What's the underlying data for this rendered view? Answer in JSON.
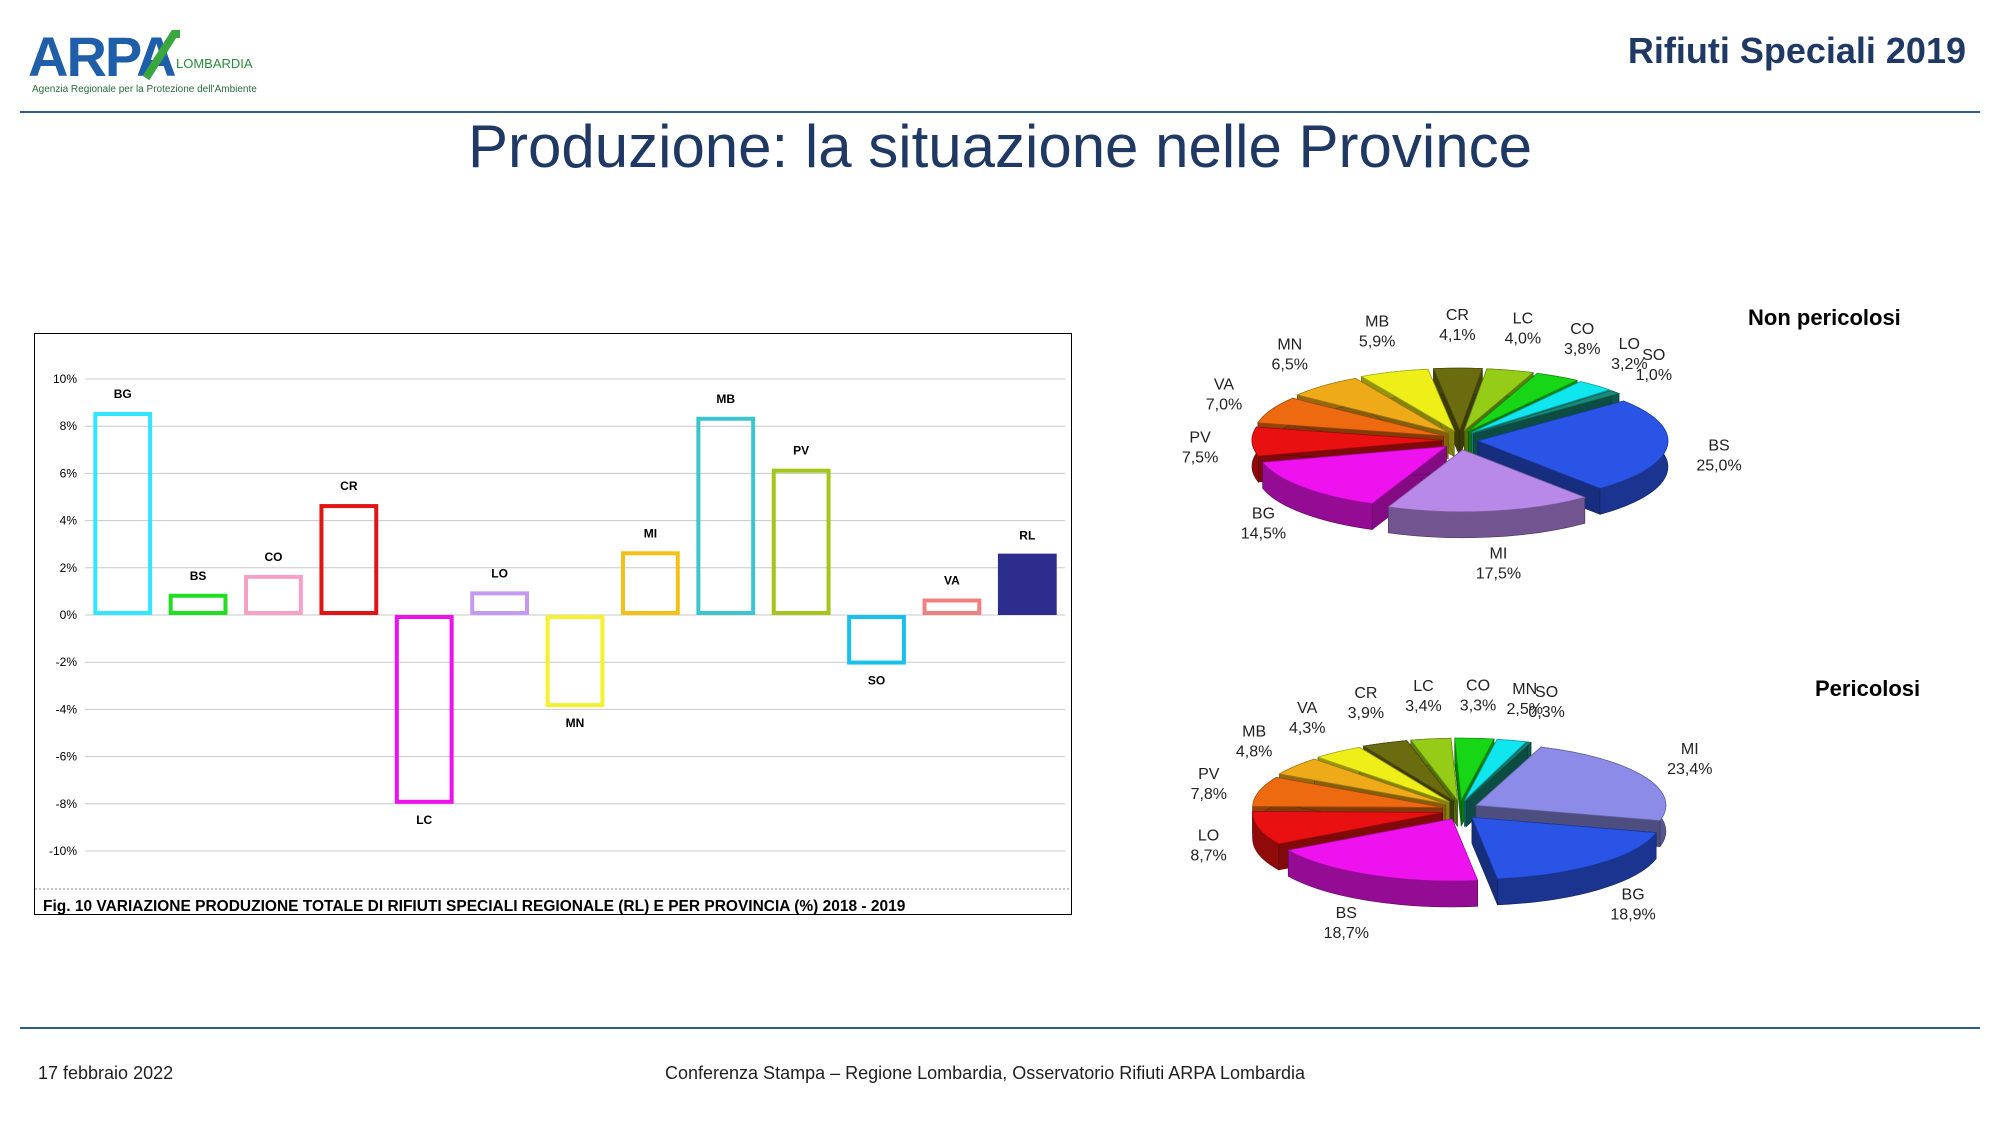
{
  "header": {
    "logo_text": "ARPA",
    "logo_region": "LOMBARDIA",
    "logo_subtitle": "Agenzia Regionale per la Protezione dell'Ambiente",
    "title": "Rifiuti Speciali 2019"
  },
  "slide_title": "Produzione: la situazione nelle Province",
  "bar_chart": {
    "caption": "Fig. 10   VARIAZIONE PRODUZIONE TOTALE DI RIFIUTI SPECIALI REGIONALE (RL) E PER PROVINCIA (%) 2018 - 2019"
  },
  "pie_titles": {
    "non_pericolosi": "Non pericolosi",
    "pericolosi": "Pericolosi"
  },
  "footer": {
    "date": "17 febbraio 2022",
    "center": "Conferenza Stampa – Regione Lombardia, Osservatorio Rifiuti  ARPA Lombardia"
  },
  "chart_data": [
    {
      "type": "bar",
      "title": "Fig. 10   VARIAZIONE PRODUZIONE TOTALE DI RIFIUTI SPECIALI REGIONALE (RL) E PER PROVINCIA (%) 2018 - 2019",
      "categories": [
        "BG",
        "BS",
        "CO",
        "CR",
        "LC",
        "LO",
        "MN",
        "MI",
        "MB",
        "PV",
        "SO",
        "VA",
        "RL"
      ],
      "values": [
        8.6,
        0.9,
        1.7,
        4.7,
        -8.0,
        1.0,
        -3.9,
        2.7,
        8.4,
        6.2,
        -2.1,
        0.7,
        2.6
      ],
      "colors": [
        "#33e6ff",
        "#22dd22",
        "#f6a0c8",
        "#e01414",
        "#ee10ee",
        "#c39af0",
        "#f5f030",
        "#f5c016",
        "#3cc4cf",
        "#a4c519",
        "#18c0ee",
        "#f08080",
        "#2d2d8e"
      ],
      "filled": [
        false,
        false,
        false,
        false,
        false,
        false,
        false,
        false,
        false,
        false,
        false,
        false,
        true
      ],
      "ylim": [
        -10,
        10
      ],
      "yticks": [
        "10%",
        "8%",
        "6%",
        "4%",
        "2%",
        "0%",
        "-2%",
        "-4%",
        "-6%",
        "-8%",
        "-10%"
      ],
      "grid": true
    },
    {
      "type": "pie",
      "title": "Non pericolosi",
      "labels": [
        "BS",
        "MI",
        "BG",
        "PV",
        "VA",
        "MN",
        "MB",
        "CR",
        "LC",
        "CO",
        "LO",
        "SO"
      ],
      "values": [
        25.0,
        17.5,
        14.5,
        7.5,
        7.0,
        6.5,
        5.9,
        4.1,
        4.0,
        3.8,
        3.2,
        1.0
      ],
      "value_labels": [
        "25,0%",
        "17,5%",
        "14,5%",
        "7,5%",
        "7,0%",
        "6,5%",
        "5,9%",
        "4,1%",
        "4,0%",
        "3,8%",
        "3,2%",
        "1,0%"
      ],
      "colors": [
        "#2a54e6",
        "#b889e8",
        "#ee12ee",
        "#e81010",
        "#ee6a10",
        "#eeaa18",
        "#eeee18",
        "#6b6b10",
        "#94cc18",
        "#16d616",
        "#10e6ee",
        "#188a78"
      ]
    },
    {
      "type": "pie",
      "title": "Pericolosi",
      "labels": [
        "MI",
        "BG",
        "BS",
        "LO",
        "PV",
        "MB",
        "VA",
        "CR",
        "LC",
        "CO",
        "MN",
        "SO"
      ],
      "values": [
        23.4,
        18.9,
        18.7,
        8.7,
        7.8,
        4.8,
        4.3,
        3.9,
        3.4,
        3.3,
        2.5,
        0.3
      ],
      "value_labels": [
        "23,4%",
        "18,9%",
        "18,7%",
        "8,7%",
        "7,8%",
        "4,8%",
        "4,3%",
        "3,9%",
        "3,4%",
        "3,3%",
        "2,5%",
        "0,3%"
      ],
      "colors": [
        "#8c8ce8",
        "#2a54e6",
        "#ee12ee",
        "#e81010",
        "#ee6a10",
        "#eeaa18",
        "#eeee18",
        "#6b6b10",
        "#94cc18",
        "#16d616",
        "#10e6ee",
        "#188a78"
      ]
    }
  ]
}
